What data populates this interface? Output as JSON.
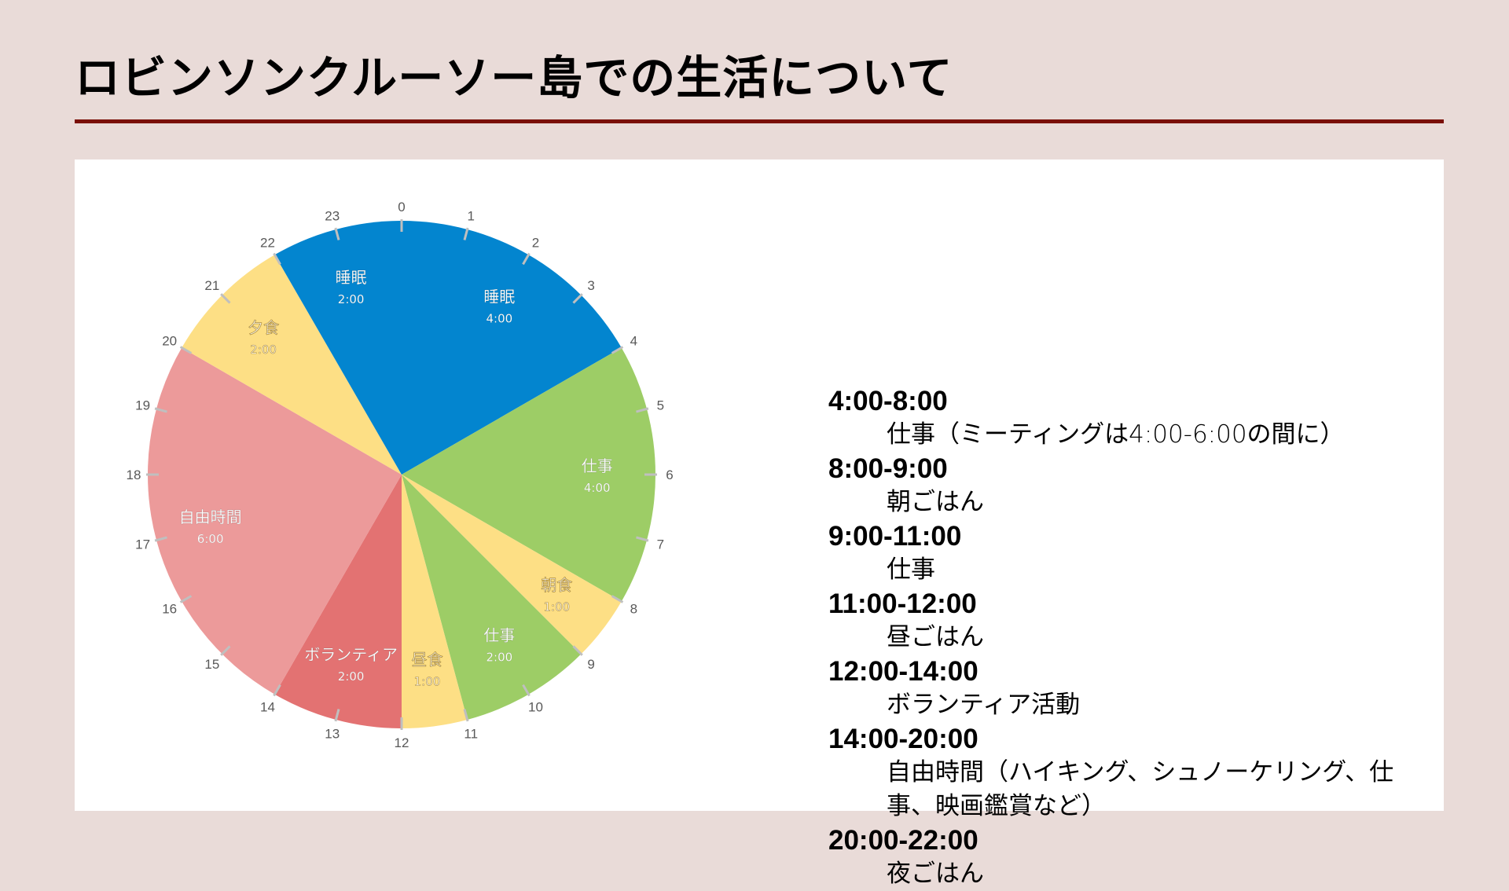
{
  "title": "ロビンソンクルーソー島での生活について",
  "colors": {
    "background": "#e9dbd8",
    "panel": "#ffffff",
    "title_rule": "#7a0f07",
    "sleep": "#0385cf",
    "work": "#9dcd66",
    "meal": "#fddf85",
    "volunteer": "#e37272",
    "free_time": "#ec9a9a",
    "tick": "#bfbfbf",
    "hour_label": "#595959"
  },
  "chart_data": {
    "type": "pie",
    "title": "",
    "description": "24-hour clock pie chart of daily schedule, starting at 0 (top), clockwise",
    "unit": "hours",
    "categories": [
      "睡眠",
      "仕事",
      "朝食",
      "仕事",
      "昼食",
      "ボランティア",
      "自由時間",
      "夕食",
      "睡眠"
    ],
    "values": [
      4,
      4,
      1,
      2,
      1,
      2,
      6,
      2,
      2
    ],
    "duration_labels": [
      "4:00",
      "4:00",
      "1:00",
      "2:00",
      "1:00",
      "2:00",
      "6:00",
      "2:00",
      "2:00"
    ],
    "start_hours": [
      0,
      4,
      8,
      9,
      11,
      12,
      14,
      20,
      22
    ],
    "end_hours": [
      4,
      8,
      9,
      11,
      12,
      14,
      20,
      22,
      24
    ],
    "colors": [
      "#0385cf",
      "#9dcd66",
      "#fddf85",
      "#9dcd66",
      "#fddf85",
      "#e37272",
      "#ec9a9a",
      "#fddf85",
      "#0385cf"
    ],
    "hour_ticks": [
      "0",
      "1",
      "2",
      "3",
      "4",
      "5",
      "6",
      "7",
      "8",
      "9",
      "10",
      "11",
      "12",
      "13",
      "14",
      "15",
      "16",
      "17",
      "18",
      "19",
      "20",
      "21",
      "22",
      "23"
    ],
    "legend": "none"
  },
  "schedule": [
    {
      "time": "4:00-8:00",
      "desc": "仕事（ミーティングは4:00-6:00の間に）"
    },
    {
      "time": "8:00-9:00",
      "desc": "朝ごはん"
    },
    {
      "time": "9:00-11:00",
      "desc": "仕事"
    },
    {
      "time": "11:00-12:00",
      "desc": "昼ごはん"
    },
    {
      "time": "12:00-14:00",
      "desc": "ボランティア活動"
    },
    {
      "time": "14:00-20:00",
      "desc": "自由時間（ハイキング、シュノーケリング、仕事、映画鑑賞など）"
    },
    {
      "time": "20:00-22:00",
      "desc": "夜ごはん"
    }
  ]
}
